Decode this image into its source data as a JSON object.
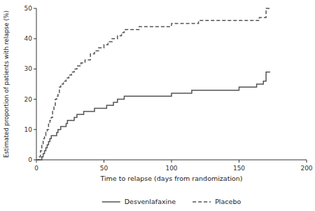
{
  "chart_data": {
    "type": "step",
    "title": "",
    "xlabel": "Time to relapse (days from randomization)",
    "ylabel": "Estimated proportion of patients with relapse (%)",
    "xlim": [
      0,
      200
    ],
    "ylim": [
      0,
      50
    ],
    "xticks": [
      0,
      50,
      100,
      150,
      200
    ],
    "yticks": [
      0,
      10,
      20,
      30,
      40,
      50
    ],
    "grid": false,
    "legend": "bottom",
    "series": [
      {
        "name": "Desvenlafaxine",
        "color": "#555555",
        "line_style": "solid",
        "x": [
          0,
          3,
          4,
          5,
          6,
          7,
          8,
          9,
          10,
          11,
          14,
          15,
          16,
          18,
          22,
          23,
          25,
          28,
          30,
          35,
          40,
          43,
          48,
          52,
          55,
          57,
          58,
          60,
          63,
          65,
          70,
          75,
          80,
          85,
          90,
          95,
          100,
          105,
          110,
          115,
          120,
          125,
          130,
          135,
          140,
          145,
          150,
          155,
          160,
          163,
          165,
          168,
          170,
          173
        ],
        "values": [
          0,
          0,
          1,
          2,
          3,
          4,
          5,
          6,
          7,
          8,
          8,
          9,
          10,
          11,
          12,
          13,
          13,
          14,
          15,
          16,
          16,
          17,
          17,
          18,
          18,
          19,
          19,
          20,
          20,
          21,
          21,
          21,
          21,
          21,
          21,
          21,
          22,
          22,
          22,
          23,
          23,
          23,
          23,
          23,
          23,
          23,
          24,
          24,
          24,
          25,
          25,
          26,
          29,
          29
        ]
      },
      {
        "name": "Placebo",
        "color": "#555555",
        "line_style": "dashed",
        "x": [
          0,
          2,
          3,
          4,
          5,
          6,
          7,
          8,
          9,
          10,
          11,
          12,
          13,
          14,
          15,
          16,
          17,
          18,
          20,
          22,
          24,
          26,
          28,
          30,
          33,
          36,
          40,
          43,
          46,
          50,
          53,
          56,
          58,
          60,
          63,
          65,
          70,
          73,
          76,
          80,
          85,
          90,
          95,
          100,
          105,
          110,
          115,
          120,
          125,
          130,
          135,
          140,
          145,
          150,
          155,
          160,
          163,
          165,
          170,
          173
        ],
        "values": [
          0,
          1,
          3,
          5,
          7,
          8,
          9,
          10,
          12,
          13,
          14,
          16,
          18,
          20,
          21,
          22,
          24,
          25,
          26,
          27,
          28,
          29,
          30,
          31,
          32,
          33,
          35,
          36,
          37,
          38,
          39,
          40,
          40,
          41,
          42,
          43,
          43,
          43,
          44,
          44,
          44,
          44,
          44,
          45,
          45,
          45,
          45,
          46,
          46,
          46,
          46,
          46,
          46,
          46,
          46,
          46,
          46,
          47,
          50,
          50
        ]
      }
    ]
  }
}
